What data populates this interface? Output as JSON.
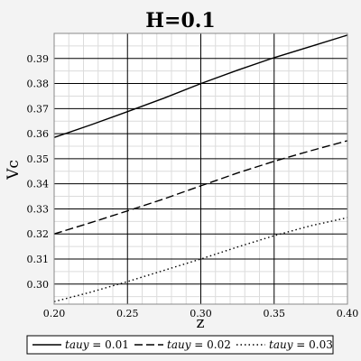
{
  "chart_data": {
    "type": "line",
    "title": "H=0.1",
    "xlabel": "z",
    "ylabel": "Vc",
    "xlim": [
      0.2,
      0.4
    ],
    "ylim": [
      0.292,
      0.4
    ],
    "x_ticks": [
      "0.20",
      "0.25",
      "0.30",
      "0.35",
      "0.40"
    ],
    "y_ticks": [
      "0.30",
      "0.31",
      "0.32",
      "0.33",
      "0.34",
      "0.35",
      "0.36",
      "0.37",
      "0.38",
      "0.39"
    ],
    "grid": true,
    "legend_position": "bottom",
    "series": [
      {
        "name": "tauy = 0.01",
        "legend_var": "tauy",
        "legend_value": " = 0.01",
        "style": "solid",
        "x": [
          0.2,
          0.225,
          0.25,
          0.275,
          0.3,
          0.325,
          0.35,
          0.375,
          0.4
        ],
        "y": [
          0.3585,
          0.3635,
          0.3688,
          0.3742,
          0.38,
          0.3853,
          0.3903,
          0.3948,
          0.3993
        ]
      },
      {
        "name": "tauy = 0.02",
        "legend_var": "tauy",
        "legend_value": " = 0.02",
        "style": "dashed",
        "x": [
          0.2,
          0.225,
          0.25,
          0.275,
          0.3,
          0.325,
          0.35,
          0.375,
          0.4
        ],
        "y": [
          0.32,
          0.3245,
          0.3292,
          0.334,
          0.3392,
          0.3443,
          0.349,
          0.3532,
          0.3572
        ]
      },
      {
        "name": "tauy = 0.03",
        "legend_var": "tauy",
        "legend_value": " = 0.03",
        "style": "dotted",
        "x": [
          0.2,
          0.225,
          0.25,
          0.275,
          0.3,
          0.325,
          0.35,
          0.375,
          0.4
        ],
        "y": [
          0.293,
          0.2968,
          0.301,
          0.3055,
          0.31,
          0.3148,
          0.3193,
          0.3233,
          0.3265
        ]
      }
    ]
  }
}
